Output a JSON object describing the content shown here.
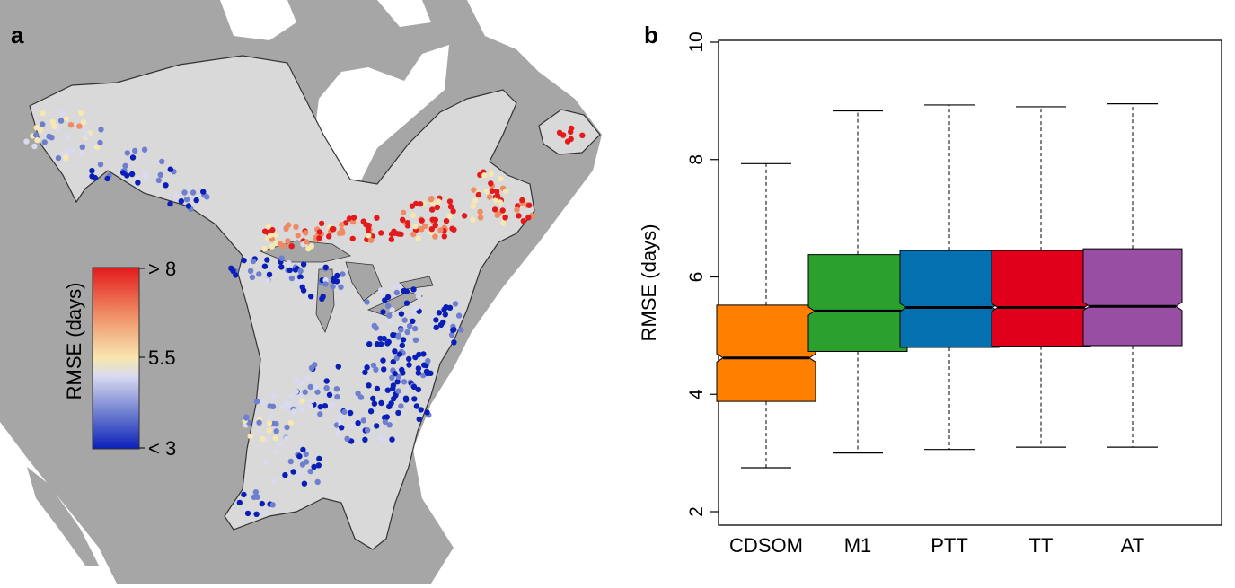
{
  "panel_a": {
    "label": "a",
    "colorbar": {
      "title": "RMSE (days)",
      "labels": [
        "> 8",
        "5.5",
        "< 3"
      ],
      "colors": [
        "#e31a1c",
        "#ef8a62",
        "#f7e7b0",
        "#d9d9f0",
        "#6f7fd0",
        "#0a1fb8"
      ]
    },
    "map_colors": {
      "ocean": "#ffffff",
      "land": "#a6a6a6",
      "study_region": "#d9d9d9",
      "lakes": "#a6a6a6",
      "border": "#333333"
    }
  },
  "panel_b": {
    "label": "b",
    "ylabel": "RMSE (days)",
    "yticks": [
      "2",
      "4",
      "6",
      "8",
      "10"
    ]
  },
  "chart_data": [
    {
      "type": "box",
      "title": "",
      "xlabel": "",
      "ylabel": "RMSE (days)",
      "ylim": [
        2,
        10
      ],
      "notched": true,
      "categories": [
        "CDSOM",
        "M1",
        "PTT",
        "TT",
        "AT"
      ],
      "colors": [
        "#ff7f00",
        "#2ca02c",
        "#0570b0",
        "#e0001b",
        "#984ea3"
      ],
      "boxes": [
        {
          "label": "CDSOM",
          "whisker_low": 2.75,
          "q1": 3.88,
          "median": 4.62,
          "q3": 5.52,
          "whisker_high": 7.93,
          "notch_low": 4.55,
          "notch_high": 4.69
        },
        {
          "label": "M1",
          "whisker_low": 3.0,
          "q1": 4.73,
          "median": 5.42,
          "q3": 6.38,
          "whisker_high": 8.83,
          "notch_low": 5.35,
          "notch_high": 5.49
        },
        {
          "label": "PTT",
          "whisker_low": 3.06,
          "q1": 4.8,
          "median": 5.48,
          "q3": 6.45,
          "whisker_high": 8.93,
          "notch_low": 5.41,
          "notch_high": 5.55
        },
        {
          "label": "TT",
          "whisker_low": 3.1,
          "q1": 4.82,
          "median": 5.48,
          "q3": 6.45,
          "whisker_high": 8.9,
          "notch_low": 5.41,
          "notch_high": 5.55
        },
        {
          "label": "AT",
          "whisker_low": 3.1,
          "q1": 4.83,
          "median": 5.5,
          "q3": 6.48,
          "whisker_high": 8.95,
          "notch_low": 5.43,
          "notch_high": 5.57
        }
      ]
    }
  ]
}
